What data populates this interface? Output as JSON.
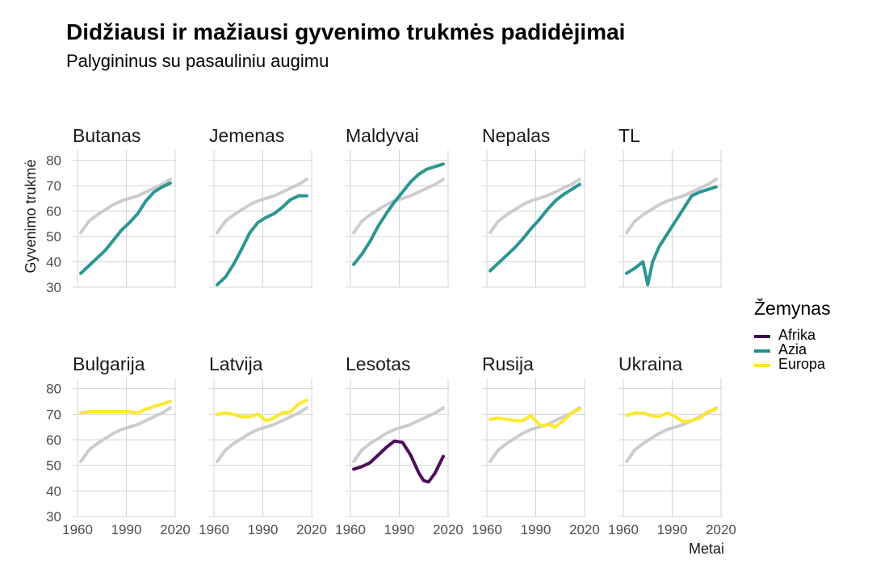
{
  "title": "Didžiausi ir mažiausi gyvenimo trukmės padidėjimai",
  "subtitle": "Palygininus su pasauliniu augimu",
  "legend": {
    "title": "Žemynas",
    "items": [
      {
        "label": "Afrika",
        "color": "#440154"
      },
      {
        "label": "Azia",
        "color": "#21908C"
      },
      {
        "label": "Europa",
        "color": "#FDE725"
      }
    ]
  },
  "colors": {
    "world_reference": "#c8c8c8",
    "grid": "#d4d4d4"
  },
  "chart_data": {
    "type": "line",
    "xlabel": "Metai",
    "ylabel": "Gyvenimo trukmė",
    "xlim": [
      1957,
      2021
    ],
    "ylim": [
      30,
      84
    ],
    "x_ticks": [
      1960,
      1990,
      2020
    ],
    "x_tick_labels": [
      "1960",
      "1990",
      "2020"
    ],
    "y_ticks": [
      30,
      40,
      50,
      60,
      70,
      80
    ],
    "y_tick_labels": [
      "30",
      "40",
      "50",
      "60",
      "70",
      "80"
    ],
    "grid": true,
    "legend_position": "right",
    "reference_series": {
      "x": [
        1962,
        1967,
        1972,
        1977,
        1982,
        1987,
        1992,
        1997,
        2002,
        2007,
        2012,
        2017
      ],
      "values": [
        51.5,
        56,
        58.5,
        60.5,
        62.5,
        64,
        65,
        66,
        67.5,
        69,
        70.5,
        72.5
      ]
    },
    "panels": [
      {
        "name": "Butanas",
        "continent": "Azia",
        "x": [
          1962,
          1967,
          1972,
          1977,
          1982,
          1987,
          1992,
          1997,
          2002,
          2007,
          2012,
          2017
        ],
        "values": [
          35.5,
          38.5,
          41.5,
          44.5,
          48.5,
          52.5,
          55.5,
          59,
          64,
          67.5,
          69.5,
          71
        ]
      },
      {
        "name": "Jemenas",
        "continent": "Azia",
        "x": [
          1962,
          1967,
          1972,
          1977,
          1982,
          1987,
          1992,
          1997,
          2002,
          2007,
          2012,
          2017
        ],
        "values": [
          31,
          34,
          39,
          45,
          51.5,
          55.5,
          57.5,
          59,
          61.5,
          64.5,
          66,
          66
        ]
      },
      {
        "name": "Maldyvai",
        "continent": "Azia",
        "x": [
          1962,
          1967,
          1972,
          1977,
          1982,
          1987,
          1992,
          1997,
          2002,
          2007,
          2012,
          2017
        ],
        "values": [
          39,
          43,
          48,
          54,
          59,
          63.5,
          67.5,
          71.5,
          74.5,
          76.5,
          77.5,
          78.5
        ]
      },
      {
        "name": "Nepalas",
        "continent": "Azia",
        "x": [
          1962,
          1967,
          1972,
          1977,
          1982,
          1987,
          1992,
          1997,
          2002,
          2007,
          2012,
          2017
        ],
        "values": [
          36.5,
          39.5,
          42.5,
          45.5,
          49,
          53,
          56.5,
          60.5,
          64,
          66.5,
          68.5,
          70.5
        ]
      },
      {
        "name": "TL",
        "continent": "Azia",
        "x": [
          1962,
          1967,
          1972,
          1975,
          1978,
          1982,
          1987,
          1992,
          1997,
          2002,
          2007,
          2012,
          2017
        ],
        "values": [
          35.5,
          37.5,
          40,
          31,
          40,
          46,
          51,
          56,
          61,
          66,
          67.5,
          68.5,
          69.5
        ]
      },
      {
        "name": "Bulgarija",
        "continent": "Europa",
        "x": [
          1962,
          1967,
          1972,
          1977,
          1982,
          1987,
          1992,
          1997,
          2002,
          2007,
          2012,
          2017
        ],
        "values": [
          70.5,
          71,
          71,
          71,
          71,
          71,
          71,
          70.5,
          72,
          73,
          74,
          75
        ]
      },
      {
        "name": "Latvija",
        "continent": "Europa",
        "x": [
          1962,
          1967,
          1972,
          1977,
          1982,
          1987,
          1992,
          1995,
          1998,
          2002,
          2007,
          2012,
          2017
        ],
        "values": [
          70,
          70.5,
          70,
          69,
          69,
          70,
          67.5,
          68,
          69,
          70.5,
          71,
          74,
          75.5
        ]
      },
      {
        "name": "Lesotas",
        "continent": "Afrika",
        "x": [
          1962,
          1967,
          1972,
          1977,
          1982,
          1987,
          1992,
          1997,
          2002,
          2005,
          2008,
          2012,
          2017
        ],
        "values": [
          48.5,
          49.5,
          51,
          54,
          57,
          59.5,
          59,
          54,
          47,
          44,
          43.5,
          47,
          53.5
        ]
      },
      {
        "name": "Rusija",
        "continent": "Europa",
        "x": [
          1962,
          1967,
          1972,
          1977,
          1982,
          1987,
          1992,
          1995,
          1998,
          2002,
          2005,
          2008,
          2012,
          2017
        ],
        "values": [
          68,
          68.5,
          68,
          67.5,
          67.5,
          69.5,
          66,
          65.5,
          66,
          65,
          66.5,
          68,
          70.5,
          72
        ]
      },
      {
        "name": "Ukraina",
        "continent": "Europa",
        "x": [
          1962,
          1967,
          1972,
          1977,
          1982,
          1987,
          1992,
          1997,
          2002,
          2007,
          2012,
          2017
        ],
        "values": [
          69.5,
          70.5,
          70.5,
          69.5,
          69,
          70.5,
          69,
          67,
          67.5,
          68.5,
          71,
          72
        ]
      }
    ]
  }
}
